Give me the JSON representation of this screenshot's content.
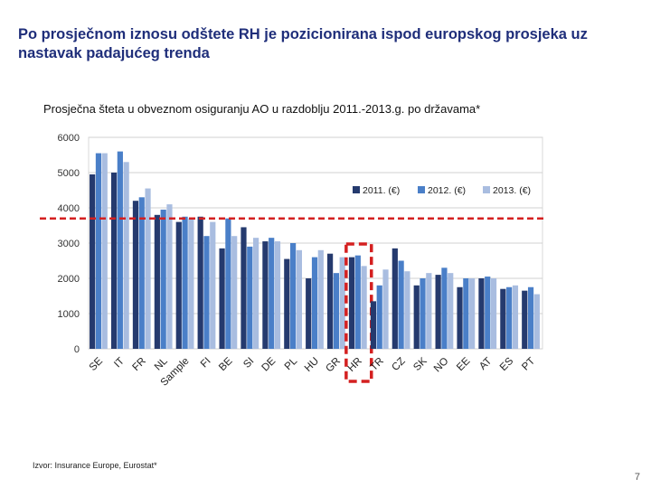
{
  "slide": {
    "title_line1": "Po prosječnom iznosu odštete RH je pozicionirana ispod europskog prosjeka uz",
    "title_line2": "nastavak padajućeg trenda",
    "source": "Izvor: Insurance Europe, Eurostat*",
    "page_number": "7"
  },
  "chart_data": {
    "type": "bar",
    "title": "Prosječna šteta u obveznom osiguranju AO u razdoblju 2011.-2013.g. po državama*",
    "xlabel": "",
    "ylabel": "",
    "ylim": [
      0,
      6000
    ],
    "yticks": [
      0,
      1000,
      2000,
      3000,
      4000,
      5000,
      6000
    ],
    "grid": true,
    "legend_position": "top-right",
    "categories": [
      "SE",
      "IT",
      "FR",
      "NL",
      "Sample",
      "FI",
      "BE",
      "SI",
      "DE",
      "PL",
      "HU",
      "GR",
      "HR",
      "TR",
      "CZ",
      "SK",
      "NO",
      "EE",
      "AT",
      "ES",
      "PT"
    ],
    "series": [
      {
        "name": "2011. (€)",
        "color": "#253a6e",
        "values": [
          4950,
          5000,
          4200,
          3800,
          3600,
          3750,
          2850,
          3450,
          3050,
          2550,
          2000,
          2700,
          2600,
          1350,
          2850,
          1800,
          2100,
          1750,
          2000,
          1700,
          1650
        ]
      },
      {
        "name": "2012. (€)",
        "color": "#4a7fc8",
        "values": [
          5550,
          5600,
          4300,
          3950,
          3750,
          3200,
          3700,
          2900,
          3150,
          3000,
          2600,
          2150,
          2650,
          1800,
          2500,
          2000,
          2300,
          2000,
          2050,
          1750,
          1750
        ]
      },
      {
        "name": "2013. (€)",
        "color": "#a9bde0",
        "values": [
          5550,
          5300,
          4550,
          4100,
          3700,
          3600,
          3200,
          3150,
          3050,
          2800,
          2800,
          2600,
          2350,
          2250,
          2200,
          2150,
          2150,
          2000,
          2000,
          1800,
          1550
        ]
      }
    ],
    "reference_line": {
      "value": 3700,
      "color": "#d42020"
    },
    "highlight": {
      "category": "HR",
      "color": "#d42020"
    }
  }
}
